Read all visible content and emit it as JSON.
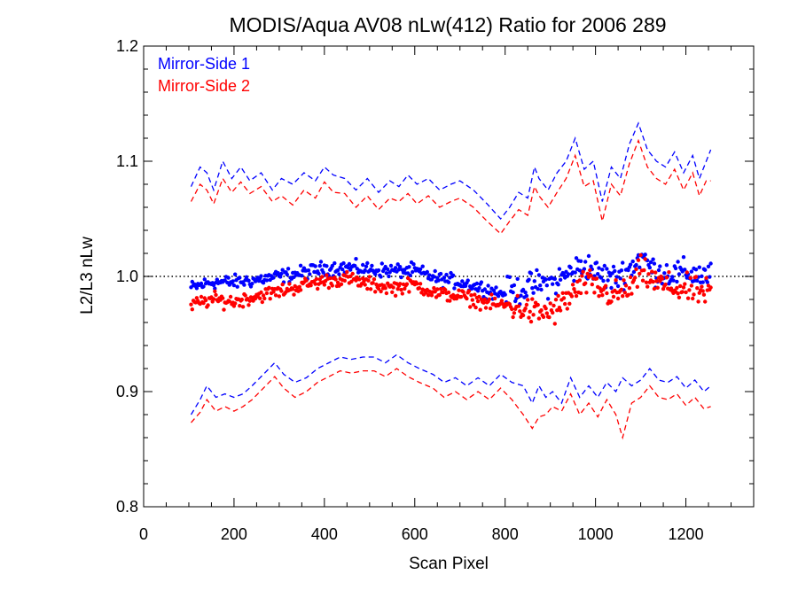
{
  "chart_data": {
    "type": "scatter",
    "title": "MODIS/Aqua AV08 nLw(412) Ratio for 2006 289",
    "xlabel": "Scan Pixel",
    "ylabel": "L2/L3 nLw",
    "xlim": [
      0,
      1350
    ],
    "ylim": [
      0.8,
      1.2
    ],
    "x_ticks": [
      0,
      200,
      400,
      600,
      800,
      1000,
      1200
    ],
    "x_tick_labels": [
      "0",
      "200",
      "400",
      "600",
      "800",
      "1000",
      "1200"
    ],
    "y_ticks": [
      0.8,
      0.9,
      1.0,
      1.1,
      1.2
    ],
    "y_tick_labels": [
      "0.8",
      "0.9",
      "1.0",
      "1.1",
      "1.2"
    ],
    "reference_line": 1.0,
    "legend_position": "top-left",
    "colors": {
      "ms1": "#0000ff",
      "ms2": "#ff0000",
      "reference": "#000000"
    },
    "series": [
      {
        "name": "Mirror-Side 1",
        "color": "#0000ff",
        "mean": {
          "x": [
            105,
            150,
            200,
            250,
            300,
            350,
            400,
            450,
            500,
            550,
            600,
            650,
            700,
            750,
            790,
            830,
            870,
            910,
            950,
            980,
            1000,
            1040,
            1080,
            1100,
            1130,
            1170,
            1210,
            1250
          ],
          "y": [
            0.99,
            0.995,
            0.995,
            0.997,
            1.0,
            1.003,
            1.007,
            1.008,
            1.006,
            1.005,
            1.005,
            0.998,
            0.995,
            0.99,
            0.985,
            0.988,
            0.993,
            0.995,
            1.005,
            1.01,
            1.003,
            0.998,
            1.008,
            1.018,
            1.005,
            1.002,
            1.003,
            1.0
          ]
        },
        "upper": {
          "x": [
            105,
            125,
            140,
            155,
            175,
            195,
            215,
            235,
            260,
            285,
            305,
            330,
            355,
            380,
            400,
            420,
            445,
            470,
            495,
            520,
            545,
            565,
            585,
            605,
            630,
            655,
            680,
            700,
            730,
            760,
            790,
            810,
            830,
            850,
            865,
            875,
            895,
            915,
            935,
            955,
            975,
            995,
            1015,
            1035,
            1055,
            1075,
            1095,
            1115,
            1135,
            1155,
            1175,
            1195,
            1215,
            1230,
            1245,
            1255
          ],
          "y": [
            1.078,
            1.095,
            1.09,
            1.075,
            1.1,
            1.085,
            1.095,
            1.083,
            1.09,
            1.075,
            1.085,
            1.08,
            1.09,
            1.083,
            1.095,
            1.088,
            1.085,
            1.075,
            1.085,
            1.073,
            1.083,
            1.078,
            1.088,
            1.08,
            1.085,
            1.075,
            1.08,
            1.083,
            1.075,
            1.063,
            1.05,
            1.06,
            1.073,
            1.068,
            1.095,
            1.085,
            1.075,
            1.09,
            1.1,
            1.12,
            1.093,
            1.1,
            1.065,
            1.095,
            1.085,
            1.115,
            1.133,
            1.11,
            1.1,
            1.095,
            1.108,
            1.09,
            1.105,
            1.085,
            1.1,
            1.11
          ]
        },
        "lower": {
          "x": [
            105,
            125,
            140,
            160,
            180,
            200,
            220,
            240,
            265,
            290,
            310,
            335,
            360,
            385,
            410,
            435,
            460,
            485,
            510,
            535,
            560,
            585,
            610,
            640,
            665,
            690,
            715,
            740,
            765,
            790,
            815,
            840,
            860,
            875,
            890,
            905,
            925,
            945,
            965,
            985,
            1005,
            1025,
            1045,
            1060,
            1080,
            1100,
            1120,
            1140,
            1160,
            1180,
            1200,
            1220,
            1240,
            1255
          ],
          "y": [
            0.88,
            0.893,
            0.905,
            0.895,
            0.898,
            0.895,
            0.898,
            0.905,
            0.915,
            0.925,
            0.915,
            0.908,
            0.912,
            0.92,
            0.925,
            0.93,
            0.928,
            0.93,
            0.93,
            0.925,
            0.932,
            0.925,
            0.92,
            0.915,
            0.908,
            0.912,
            0.905,
            0.912,
            0.905,
            0.915,
            0.908,
            0.905,
            0.89,
            0.905,
            0.895,
            0.9,
            0.89,
            0.912,
            0.895,
            0.905,
            0.895,
            0.908,
            0.9,
            0.912,
            0.905,
            0.91,
            0.92,
            0.91,
            0.908,
            0.913,
            0.903,
            0.91,
            0.9,
            0.905
          ]
        }
      },
      {
        "name": "Mirror-Side 2",
        "color": "#ff0000",
        "mean": {
          "x": [
            105,
            150,
            200,
            250,
            300,
            350,
            400,
            450,
            500,
            550,
            600,
            650,
            700,
            750,
            790,
            830,
            870,
            910,
            950,
            980,
            1000,
            1040,
            1080,
            1100,
            1130,
            1170,
            1210,
            1250
          ],
          "y": [
            0.975,
            0.98,
            0.978,
            0.983,
            0.987,
            0.992,
            0.996,
            0.998,
            0.993,
            0.99,
            0.993,
            0.985,
            0.983,
            0.978,
            0.975,
            0.973,
            0.968,
            0.97,
            0.985,
            0.995,
            0.99,
            0.983,
            0.99,
            1.005,
            0.995,
            0.99,
            0.988,
            0.985
          ]
        },
        "upper": {
          "x": [
            105,
            125,
            140,
            155,
            175,
            195,
            215,
            235,
            260,
            285,
            305,
            330,
            355,
            380,
            400,
            420,
            445,
            470,
            495,
            520,
            545,
            565,
            585,
            605,
            630,
            655,
            680,
            700,
            730,
            760,
            790,
            810,
            830,
            850,
            865,
            875,
            895,
            915,
            935,
            955,
            975,
            995,
            1015,
            1035,
            1055,
            1075,
            1095,
            1115,
            1135,
            1155,
            1175,
            1195,
            1215,
            1230,
            1245,
            1255
          ],
          "y": [
            1.065,
            1.08,
            1.075,
            1.063,
            1.085,
            1.073,
            1.082,
            1.072,
            1.078,
            1.065,
            1.07,
            1.062,
            1.075,
            1.068,
            1.082,
            1.073,
            1.072,
            1.06,
            1.07,
            1.058,
            1.068,
            1.065,
            1.072,
            1.063,
            1.07,
            1.06,
            1.065,
            1.068,
            1.06,
            1.048,
            1.037,
            1.048,
            1.058,
            1.053,
            1.078,
            1.07,
            1.06,
            1.073,
            1.085,
            1.105,
            1.078,
            1.083,
            1.048,
            1.08,
            1.07,
            1.098,
            1.118,
            1.095,
            1.085,
            1.08,
            1.093,
            1.075,
            1.09,
            1.07,
            1.083,
            1.083
          ]
        },
        "lower": {
          "x": [
            105,
            125,
            140,
            160,
            180,
            200,
            220,
            240,
            265,
            290,
            310,
            335,
            360,
            385,
            410,
            435,
            460,
            485,
            510,
            535,
            560,
            585,
            610,
            640,
            665,
            690,
            715,
            740,
            765,
            790,
            815,
            840,
            860,
            875,
            890,
            905,
            925,
            945,
            965,
            985,
            1005,
            1025,
            1045,
            1060,
            1080,
            1100,
            1120,
            1140,
            1160,
            1180,
            1200,
            1220,
            1240,
            1255
          ],
          "y": [
            0.873,
            0.882,
            0.893,
            0.883,
            0.887,
            0.883,
            0.887,
            0.893,
            0.903,
            0.913,
            0.903,
            0.895,
            0.9,
            0.908,
            0.913,
            0.918,
            0.916,
            0.918,
            0.918,
            0.913,
            0.92,
            0.913,
            0.908,
            0.903,
            0.895,
            0.9,
            0.893,
            0.9,
            0.893,
            0.903,
            0.893,
            0.88,
            0.868,
            0.878,
            0.88,
            0.887,
            0.883,
            0.898,
            0.88,
            0.89,
            0.878,
            0.893,
            0.88,
            0.86,
            0.89,
            0.895,
            0.905,
            0.895,
            0.893,
            0.898,
            0.888,
            0.895,
            0.885,
            0.887
          ]
        }
      }
    ]
  }
}
